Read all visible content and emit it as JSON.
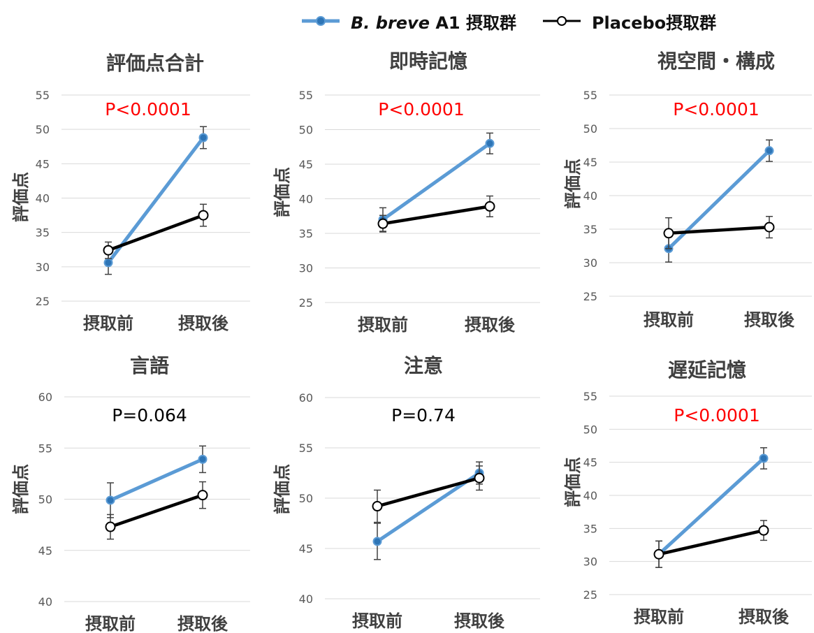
{
  "legend": {
    "items": [
      {
        "prefix_italic": "B. breve",
        "suffix": " A1 摂取群",
        "color": "#5b9bd5",
        "marker": "filled"
      },
      {
        "prefix_italic": "",
        "suffix": "Placebo摂取群",
        "color": "#000000",
        "marker": "hollow"
      }
    ]
  },
  "colors": {
    "breve": "#5b9bd5",
    "placebo": "#000000",
    "significant": "#ff0000",
    "nonsignificant": "#000000",
    "grid": "#d9d9d9",
    "axis_text": "#595959"
  },
  "chart_data": [
    {
      "type": "line",
      "title": "評価点合計",
      "ylabel": "評価点",
      "categories": [
        "摂取前",
        "摂取後"
      ],
      "ylim": [
        25,
        55
      ],
      "ticks": [
        25,
        30,
        35,
        40,
        45,
        50,
        55
      ],
      "grid": true,
      "pvalue": "P<0.0001",
      "significant": true,
      "series": [
        {
          "key": "breve",
          "values": [
            30.6,
            48.8
          ],
          "error": [
            1.7,
            1.6
          ]
        },
        {
          "key": "placebo",
          "values": [
            32.4,
            37.5
          ],
          "error": [
            1.2,
            1.6
          ]
        }
      ]
    },
    {
      "type": "line",
      "title": "即時記憶",
      "ylabel": "評価点",
      "categories": [
        "摂取前",
        "摂取後"
      ],
      "ylim": [
        25,
        55
      ],
      "ticks": [
        25,
        30,
        35,
        40,
        45,
        50,
        55
      ],
      "grid": true,
      "pvalue": "P<0.0001",
      "significant": true,
      "series": [
        {
          "key": "breve",
          "values": [
            37.0,
            48.0
          ],
          "error": [
            1.7,
            1.5
          ]
        },
        {
          "key": "placebo",
          "values": [
            36.4,
            38.9
          ],
          "error": [
            1.2,
            1.5
          ]
        }
      ]
    },
    {
      "type": "line",
      "title": "視空間・構成",
      "ylabel": "評価点",
      "categories": [
        "摂取前",
        "摂取後"
      ],
      "ylim": [
        25,
        55
      ],
      "ticks": [
        25,
        30,
        35,
        40,
        45,
        50,
        55
      ],
      "grid": true,
      "pvalue": "P<0.0001",
      "significant": true,
      "series": [
        {
          "key": "breve",
          "values": [
            32.1,
            46.7
          ],
          "error": [
            2.0,
            1.6
          ]
        },
        {
          "key": "placebo",
          "values": [
            34.4,
            35.3
          ],
          "error": [
            2.3,
            1.6
          ]
        }
      ]
    },
    {
      "type": "line",
      "title": "言語",
      "ylabel": "評価点",
      "categories": [
        "摂取前",
        "摂取後"
      ],
      "ylim": [
        40,
        60
      ],
      "ticks": [
        40,
        45,
        50,
        55,
        60
      ],
      "grid": true,
      "pvalue": "P=0.064",
      "significant": false,
      "series": [
        {
          "key": "breve",
          "values": [
            49.9,
            53.9
          ],
          "error": [
            1.7,
            1.3
          ]
        },
        {
          "key": "placebo",
          "values": [
            47.3,
            50.4
          ],
          "error": [
            1.2,
            1.3
          ]
        }
      ]
    },
    {
      "type": "line",
      "title": "注意",
      "ylabel": "評価点",
      "categories": [
        "摂取前",
        "摂取後"
      ],
      "ylim": [
        40,
        60
      ],
      "ticks": [
        40,
        45,
        50,
        55,
        60
      ],
      "grid": true,
      "pvalue": "P=0.74",
      "significant": false,
      "series": [
        {
          "key": "breve",
          "values": [
            45.7,
            52.5
          ],
          "error": [
            1.8,
            1.1
          ]
        },
        {
          "key": "placebo",
          "values": [
            49.2,
            52.0
          ],
          "error": [
            1.6,
            1.2
          ]
        }
      ]
    },
    {
      "type": "line",
      "title": "遅延記憶",
      "ylabel": "評価点",
      "categories": [
        "摂取前",
        "摂取後"
      ],
      "ylim": [
        25,
        55
      ],
      "ticks": [
        25,
        30,
        35,
        40,
        45,
        50,
        55
      ],
      "grid": true,
      "pvalue": "P<0.0001",
      "significant": true,
      "series": [
        {
          "key": "breve",
          "values": [
            31.1,
            45.6
          ],
          "error": [
            2.0,
            1.6
          ]
        },
        {
          "key": "placebo",
          "values": [
            31.1,
            34.7
          ],
          "error": [
            2.0,
            1.5
          ]
        }
      ]
    }
  ]
}
